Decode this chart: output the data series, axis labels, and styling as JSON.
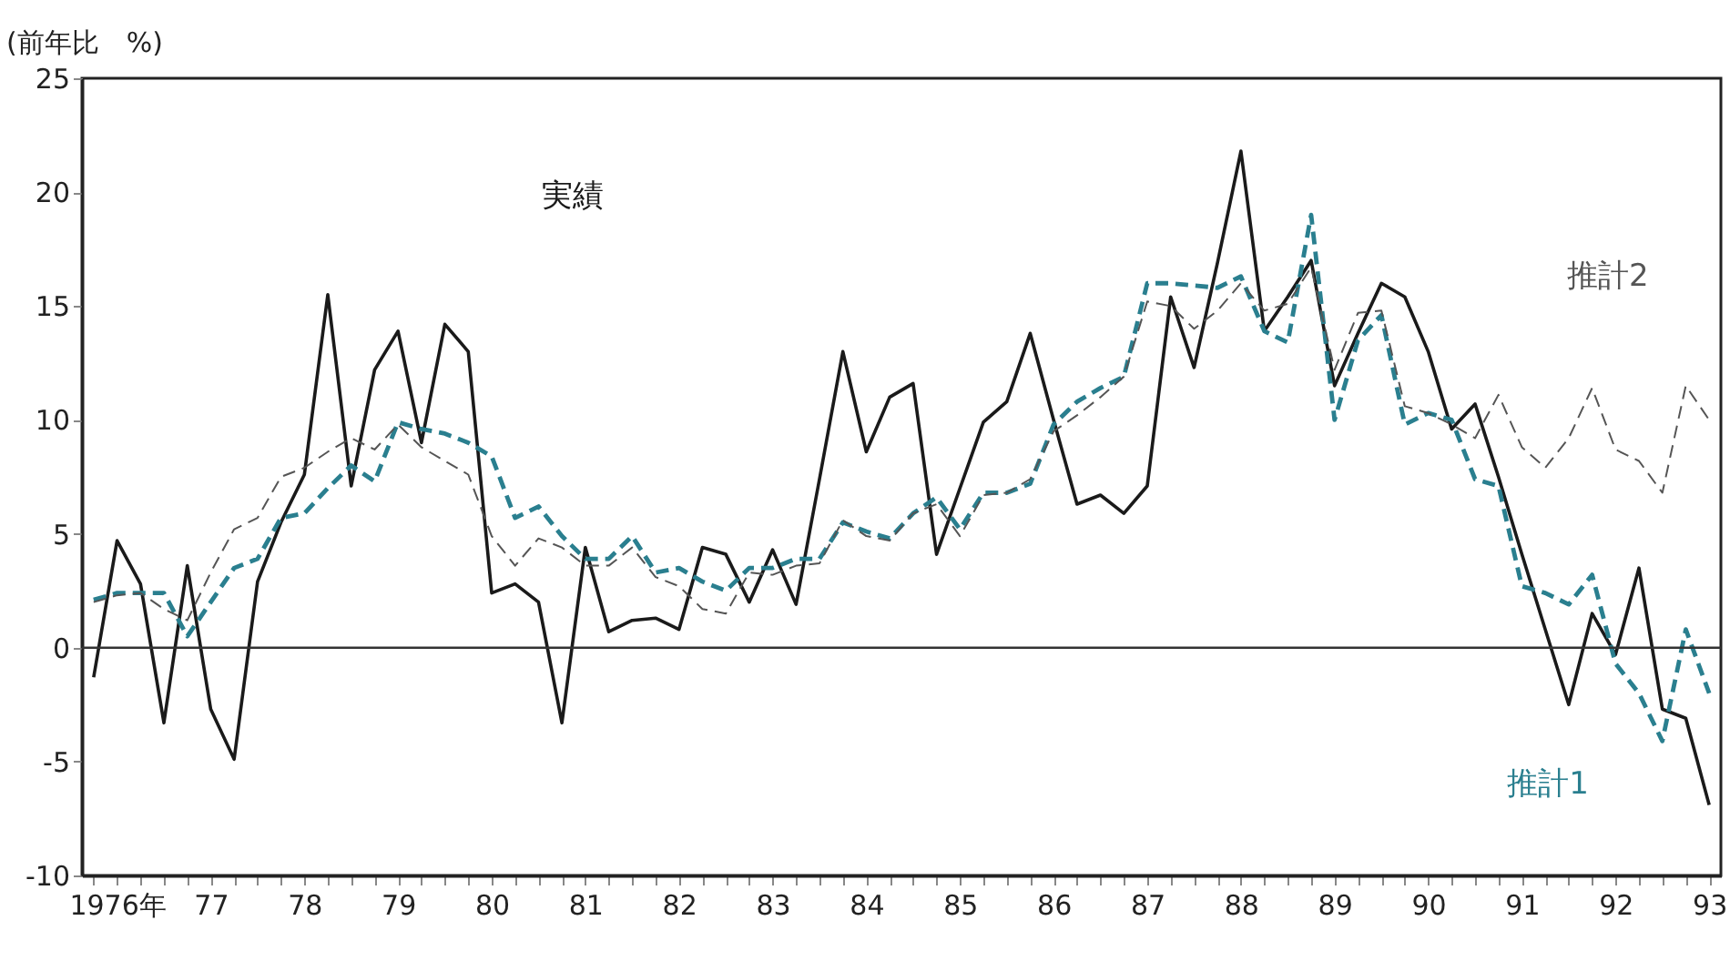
{
  "chart_data": {
    "type": "line",
    "ylabel": "(前年比　%)",
    "categories": [
      null,
      "1976年",
      null,
      null,
      null,
      "77",
      null,
      null,
      null,
      "78",
      null,
      null,
      null,
      "79",
      null,
      null,
      null,
      "80",
      null,
      null,
      null,
      "81",
      null,
      null,
      null,
      "82",
      null,
      null,
      null,
      "83",
      null,
      null,
      null,
      "84",
      null,
      null,
      null,
      "85",
      null,
      null,
      null,
      "86",
      null,
      null,
      null,
      "87",
      null,
      null,
      null,
      "88",
      null,
      null,
      null,
      "89",
      null,
      null,
      null,
      "90",
      null,
      null,
      null,
      "91",
      null,
      null,
      null,
      "92",
      null,
      null,
      null,
      "93"
    ],
    "series": [
      {
        "name": "実績",
        "color": "#1a1a1a",
        "line_style": "solid",
        "values": [
          -1.3,
          4.7,
          2.8,
          -3.3,
          3.6,
          -2.7,
          -4.9,
          2.9,
          5.5,
          7.6,
          15.5,
          7.1,
          12.2,
          13.9,
          9.0,
          14.2,
          13.0,
          2.4,
          2.8,
          2.0,
          -3.3,
          4.4,
          0.7,
          1.2,
          1.3,
          0.8,
          4.4,
          4.1,
          2.0,
          4.3,
          1.9,
          7.4,
          13.0,
          8.6,
          11.0,
          11.6,
          4.1,
          7.0,
          9.9,
          10.8,
          13.8,
          10.0,
          6.3,
          6.7,
          5.9,
          7.1,
          15.4,
          12.3,
          16.9,
          21.8,
          13.9,
          15.4,
          17.0,
          11.5,
          13.8,
          16.0,
          15.4,
          13.0,
          9.6,
          10.7,
          7.5,
          4.1,
          0.8,
          -2.5,
          1.5,
          -0.3,
          3.5,
          -2.7,
          -3.1,
          -6.9
        ]
      },
      {
        "name": "推計1",
        "color": "#2a7f8f",
        "line_style": "dashed",
        "values": [
          2.1,
          2.4,
          2.4,
          2.4,
          0.5,
          2.0,
          3.5,
          3.9,
          5.7,
          5.9,
          7.0,
          8.0,
          7.3,
          9.9,
          9.6,
          9.4,
          9.0,
          8.4,
          5.7,
          6.2,
          4.9,
          3.9,
          3.9,
          4.9,
          3.3,
          3.5,
          2.9,
          2.5,
          3.5,
          3.5,
          3.9,
          3.9,
          5.5,
          5.1,
          4.8,
          5.9,
          6.6,
          5.2,
          6.8,
          6.8,
          7.2,
          9.8,
          10.8,
          11.4,
          11.9,
          16.0,
          16.0,
          15.9,
          15.8,
          16.3,
          13.9,
          13.4,
          19.0,
          10.0,
          13.5,
          14.6,
          9.8,
          10.3,
          10.0,
          7.4,
          7.1,
          2.7,
          2.4,
          1.9,
          3.2,
          -0.7,
          -2.0,
          -4.1,
          0.8,
          -2.0
        ]
      },
      {
        "name": "推計2",
        "color": "#555555",
        "line_style": "dashed",
        "values": [
          2.0,
          2.3,
          2.4,
          1.7,
          1.2,
          3.3,
          5.2,
          5.7,
          7.5,
          7.9,
          8.6,
          9.2,
          8.7,
          9.8,
          8.8,
          8.2,
          7.6,
          4.9,
          3.6,
          4.8,
          4.4,
          3.6,
          3.6,
          4.4,
          3.1,
          2.7,
          1.7,
          1.5,
          3.3,
          3.2,
          3.6,
          3.7,
          5.6,
          4.9,
          4.7,
          5.9,
          6.3,
          4.9,
          6.7,
          6.8,
          7.4,
          9.5,
          10.2,
          11.0,
          11.9,
          15.2,
          15.0,
          14.0,
          14.8,
          16.0,
          14.8,
          15.1,
          16.7,
          12.2,
          14.7,
          14.8,
          10.6,
          10.3,
          9.8,
          9.2,
          11.1,
          8.8,
          7.9,
          9.2,
          11.4,
          8.7,
          8.2,
          6.8,
          11.5,
          10.0
        ]
      }
    ],
    "ylim": [
      -10,
      25
    ],
    "yticks": [
      -10,
      -5,
      0,
      5,
      10,
      15,
      20,
      25
    ],
    "ref_lines": [
      {
        "axis": "y",
        "value": 0,
        "color": "#333333",
        "line_style": "solid"
      }
    ],
    "grid": false,
    "marker": "none"
  }
}
